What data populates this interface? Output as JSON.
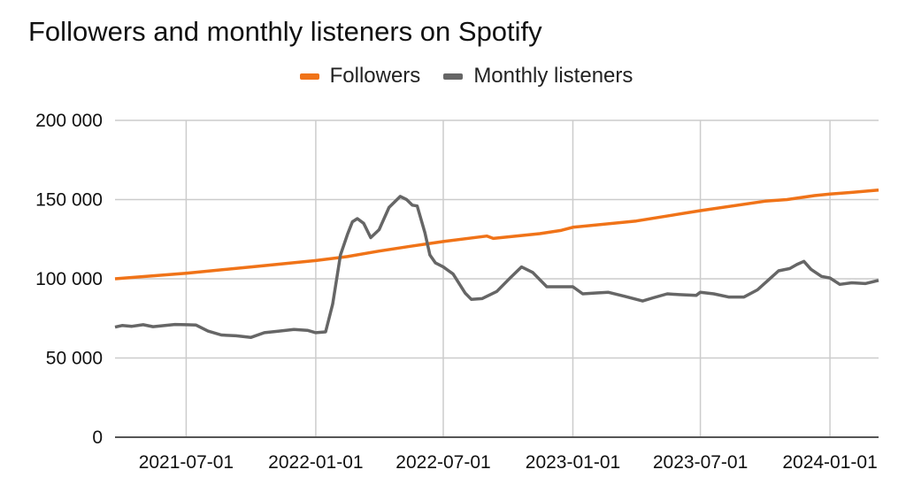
{
  "chart_data": {
    "type": "line",
    "title": "Followers and monthly listeners on Spotify",
    "xlabel": "",
    "ylabel": "",
    "legend_position": "top-center",
    "grid": true,
    "ylim": [
      0,
      200000
    ],
    "xlim": [
      "2021-03-22",
      "2024-03-10"
    ],
    "y_ticks": [
      "0",
      "50 000",
      "100 000",
      "150 000",
      "200 000"
    ],
    "y_tick_values": [
      0,
      50000,
      100000,
      150000,
      200000
    ],
    "x_ticks": [
      "2021-07-01",
      "2022-01-01",
      "2022-07-01",
      "2023-01-01",
      "2023-07-01",
      "2024-01-01"
    ],
    "series": [
      {
        "name": "Followers",
        "color": "#f07318",
        "points": [
          [
            "2021-03-22",
            100000
          ],
          [
            "2021-07-01",
            103500
          ],
          [
            "2021-10-01",
            107500
          ],
          [
            "2022-01-01",
            111500
          ],
          [
            "2022-02-15",
            114000
          ],
          [
            "2022-04-01",
            117500
          ],
          [
            "2022-05-15",
            120500
          ],
          [
            "2022-07-01",
            123500
          ],
          [
            "2022-09-01",
            127000
          ],
          [
            "2022-09-10",
            125500
          ],
          [
            "2022-11-15",
            128500
          ],
          [
            "2022-12-15",
            130500
          ],
          [
            "2023-01-01",
            132500
          ],
          [
            "2023-04-01",
            136500
          ],
          [
            "2023-07-01",
            143000
          ],
          [
            "2023-10-01",
            149000
          ],
          [
            "2023-11-01",
            150000
          ],
          [
            "2023-12-10",
            152500
          ],
          [
            "2024-01-01",
            153500
          ],
          [
            "2024-02-01",
            154500
          ],
          [
            "2024-03-10",
            156000
          ]
        ]
      },
      {
        "name": "Monthly listeners",
        "color": "#666666",
        "points": [
          [
            "2021-03-22",
            69500
          ],
          [
            "2021-04-01",
            70500
          ],
          [
            "2021-04-15",
            70000
          ],
          [
            "2021-05-01",
            71000
          ],
          [
            "2021-05-15",
            69800
          ],
          [
            "2021-06-01",
            70500
          ],
          [
            "2021-06-15",
            71200
          ],
          [
            "2021-07-01",
            71000
          ],
          [
            "2021-07-15",
            70800
          ],
          [
            "2021-08-01",
            67000
          ],
          [
            "2021-08-20",
            64500
          ],
          [
            "2021-09-10",
            64000
          ],
          [
            "2021-10-01",
            63000
          ],
          [
            "2021-10-20",
            66000
          ],
          [
            "2021-11-10",
            67000
          ],
          [
            "2021-12-01",
            68000
          ],
          [
            "2021-12-20",
            67500
          ],
          [
            "2022-01-01",
            66000
          ],
          [
            "2022-01-15",
            66500
          ],
          [
            "2022-01-25",
            84000
          ],
          [
            "2022-02-05",
            115000
          ],
          [
            "2022-02-15",
            128000
          ],
          [
            "2022-02-22",
            136000
          ],
          [
            "2022-03-01",
            138000
          ],
          [
            "2022-03-10",
            135000
          ],
          [
            "2022-03-20",
            126000
          ],
          [
            "2022-04-01",
            131000
          ],
          [
            "2022-04-15",
            145000
          ],
          [
            "2022-05-01",
            152000
          ],
          [
            "2022-05-10",
            150000
          ],
          [
            "2022-05-18",
            146500
          ],
          [
            "2022-05-25",
            146000
          ],
          [
            "2022-06-05",
            129000
          ],
          [
            "2022-06-12",
            115000
          ],
          [
            "2022-06-20",
            110000
          ],
          [
            "2022-07-01",
            107500
          ],
          [
            "2022-07-15",
            103000
          ],
          [
            "2022-08-01",
            91000
          ],
          [
            "2022-08-10",
            87000
          ],
          [
            "2022-08-25",
            87500
          ],
          [
            "2022-09-15",
            92000
          ],
          [
            "2022-10-05",
            101000
          ],
          [
            "2022-10-20",
            107500
          ],
          [
            "2022-11-05",
            104000
          ],
          [
            "2022-11-25",
            95000
          ],
          [
            "2022-12-15",
            95000
          ],
          [
            "2023-01-01",
            95000
          ],
          [
            "2023-01-15",
            90500
          ],
          [
            "2023-02-01",
            91000
          ],
          [
            "2023-02-20",
            91500
          ],
          [
            "2023-03-15",
            89000
          ],
          [
            "2023-04-10",
            86000
          ],
          [
            "2023-04-25",
            88000
          ],
          [
            "2023-05-15",
            90500
          ],
          [
            "2023-06-01",
            90000
          ],
          [
            "2023-06-25",
            89500
          ],
          [
            "2023-07-01",
            91500
          ],
          [
            "2023-07-20",
            90500
          ],
          [
            "2023-08-10",
            88500
          ],
          [
            "2023-09-01",
            88500
          ],
          [
            "2023-09-20",
            93000
          ],
          [
            "2023-10-05",
            99000
          ],
          [
            "2023-10-20",
            105000
          ],
          [
            "2023-11-05",
            106500
          ],
          [
            "2023-11-15",
            109000
          ],
          [
            "2023-11-25",
            111000
          ],
          [
            "2023-12-05",
            106000
          ],
          [
            "2023-12-20",
            101500
          ],
          [
            "2024-01-01",
            100500
          ],
          [
            "2024-01-15",
            96500
          ],
          [
            "2024-02-01",
            97500
          ],
          [
            "2024-02-20",
            97000
          ],
          [
            "2024-03-10",
            99000
          ]
        ]
      }
    ]
  }
}
